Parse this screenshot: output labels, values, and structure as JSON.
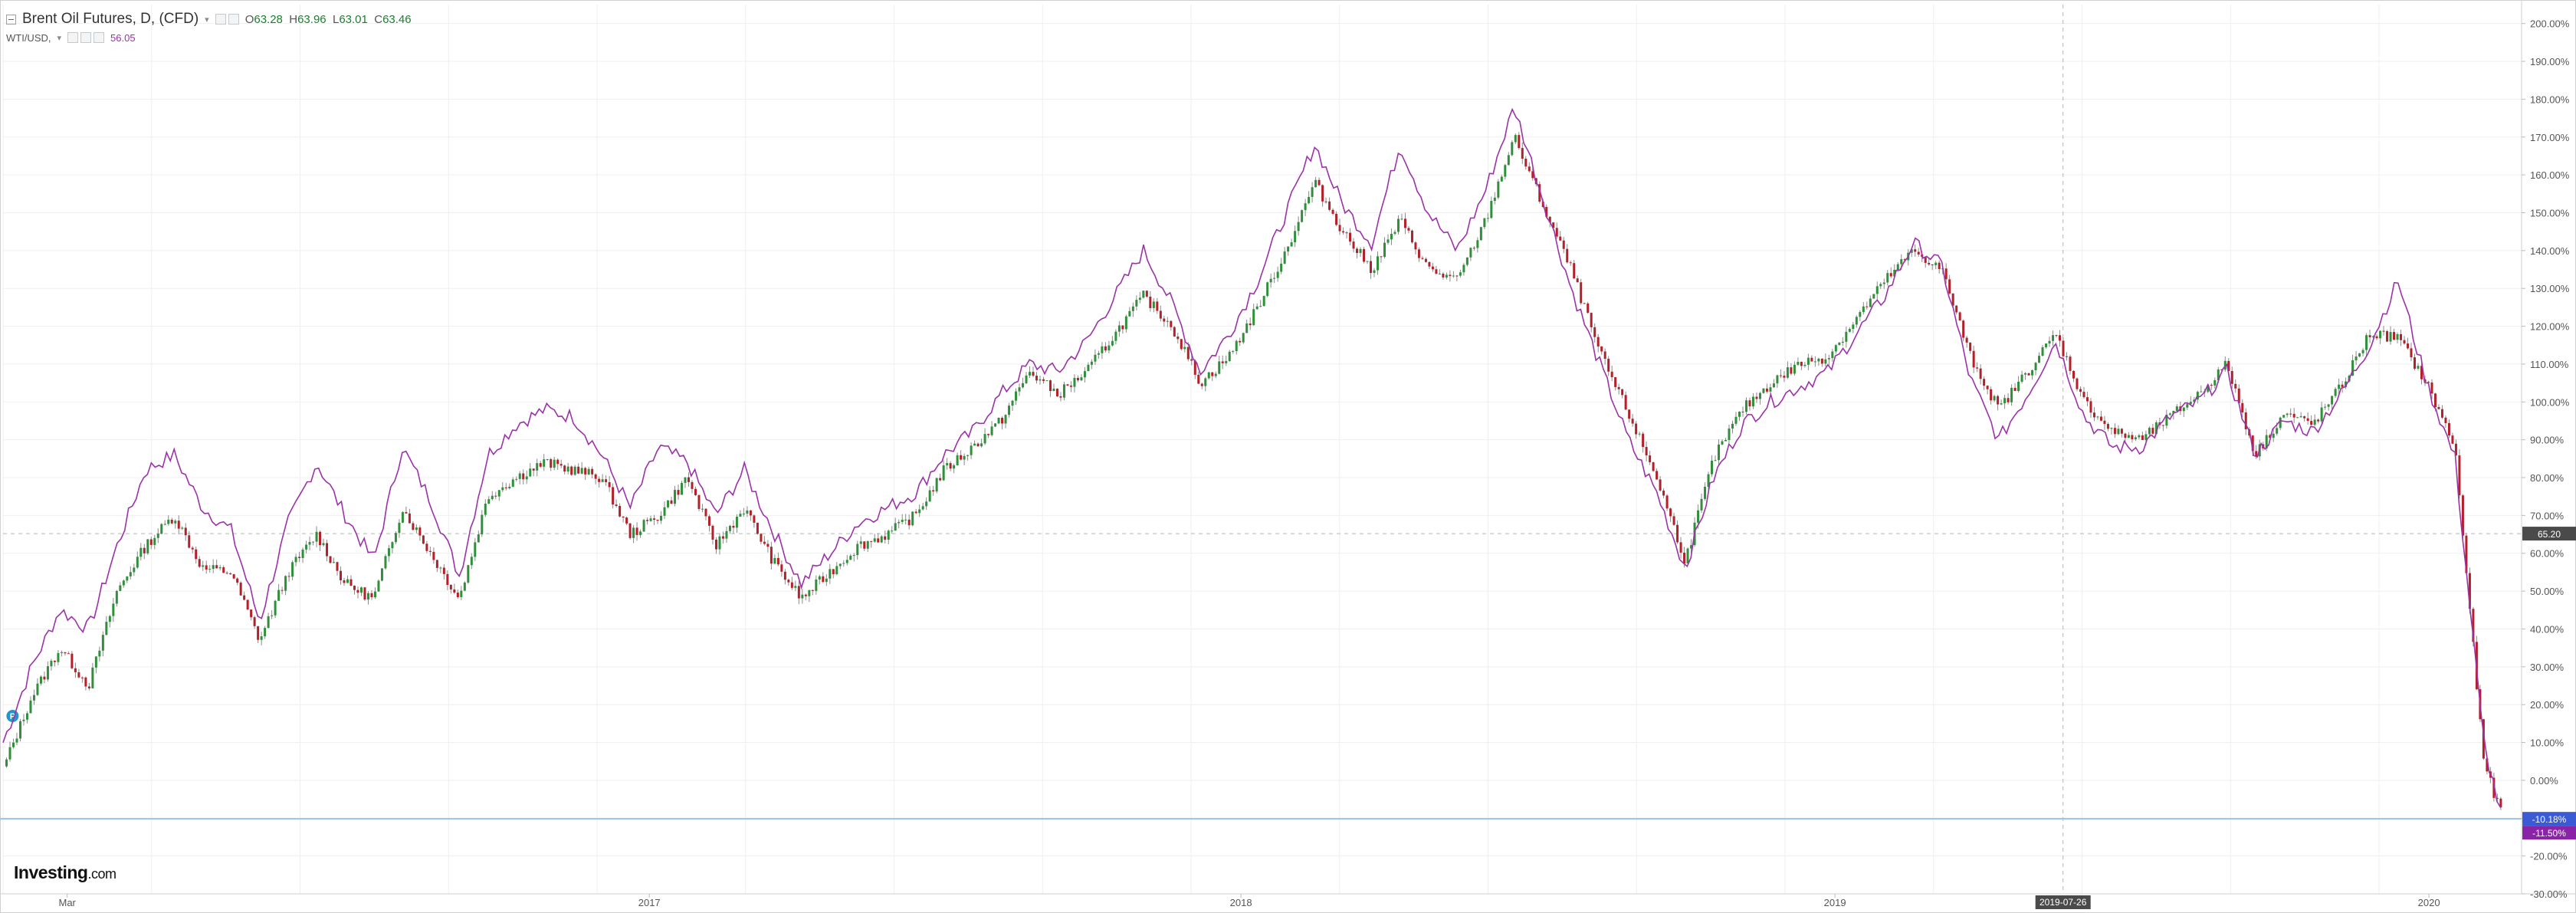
{
  "legend": {
    "main_title": "Brent Oil Futures, D, (CFD)",
    "open_label": "O",
    "open": "63.28",
    "high_label": "H",
    "high": "63.96",
    "low_label": "L",
    "low": "63.01",
    "close_label": "C",
    "close": "63.46",
    "compare_symbol": "WTI/USD,",
    "compare_value": "56.05"
  },
  "brand": {
    "name": "Investing",
    "suffix": ".com"
  },
  "colors": {
    "up": "#2f8f3a",
    "down": "#b3202a",
    "compare_line": "#9b32a8",
    "grid": "#efefef",
    "axis_text": "#555555",
    "current_line": "#9ec1e6",
    "brent_badge": "#3b5bd6",
    "wti_badge": "#8a24a6",
    "price_badge": "#4a4a4a"
  },
  "chart_data": {
    "type": "line",
    "title": "Brent Oil Futures, D, (CFD)",
    "ylabel": "",
    "y_unit": "percent change",
    "ylim": [
      -30,
      205
    ],
    "y_ticks": [
      -30,
      -20,
      -10,
      0,
      10,
      20,
      30,
      40,
      50,
      60,
      70,
      80,
      90,
      100,
      110,
      120,
      130,
      140,
      150,
      160,
      170,
      180,
      190,
      200
    ],
    "x_tick_labels": [
      "Mar",
      "2017",
      "2018",
      "2019",
      "2020"
    ],
    "x_tick_positions": [
      0.027,
      0.272,
      0.521,
      0.771,
      1.021
    ],
    "x_range": [
      0,
      1.06
    ],
    "crosshair_date": "2019-07-26",
    "crosshair_pos": 0.867,
    "crosshair_y_percent": 65.2,
    "current_badges": [
      {
        "label": "-10.18%",
        "value": -10.18,
        "series": "Brent Oil Futures"
      },
      {
        "label": "-11.50%",
        "value": -11.5,
        "series": "WTI/USD"
      },
      {
        "label": "65.20",
        "value": 65.2,
        "series": "crosshair"
      }
    ],
    "series": [
      {
        "name": "Brent Oil Futures",
        "style": "candlestick",
        "x": [
          0.0,
          0.012,
          0.024,
          0.036,
          0.048,
          0.06,
          0.072,
          0.084,
          0.096,
          0.108,
          0.12,
          0.132,
          0.144,
          0.156,
          0.168,
          0.18,
          0.192,
          0.204,
          0.216,
          0.228,
          0.24,
          0.252,
          0.264,
          0.276,
          0.288,
          0.3,
          0.312,
          0.324,
          0.336,
          0.348,
          0.36,
          0.372,
          0.384,
          0.396,
          0.408,
          0.42,
          0.432,
          0.444,
          0.456,
          0.468,
          0.48,
          0.492,
          0.504,
          0.516,
          0.528,
          0.54,
          0.552,
          0.564,
          0.576,
          0.588,
          0.6,
          0.612,
          0.624,
          0.636,
          0.648,
          0.66,
          0.672,
          0.684,
          0.696,
          0.708,
          0.72,
          0.732,
          0.744,
          0.756,
          0.768,
          0.78,
          0.792,
          0.804,
          0.816,
          0.828,
          0.84,
          0.852,
          0.864,
          0.876,
          0.888,
          0.9,
          0.912,
          0.924,
          0.936,
          0.948,
          0.96,
          0.972,
          0.984,
          0.996,
          1.008,
          1.02,
          1.032,
          1.044,
          1.052
        ],
        "values": [
          3,
          22,
          35,
          25,
          50,
          62,
          70,
          56,
          55,
          37,
          55,
          65,
          52,
          48,
          72,
          60,
          48,
          75,
          80,
          84,
          82,
          80,
          65,
          70,
          80,
          62,
          72,
          58,
          48,
          55,
          62,
          65,
          70,
          82,
          88,
          95,
          108,
          102,
          108,
          118,
          128,
          120,
          105,
          112,
          125,
          140,
          158,
          145,
          135,
          148,
          135,
          132,
          148,
          170,
          152,
          135,
          113,
          97,
          80,
          58,
          85,
          98,
          105,
          110,
          112,
          122,
          132,
          140,
          135,
          112,
          98,
          108,
          118,
          100,
          92,
          90,
          96,
          102,
          110,
          86,
          97,
          94,
          104,
          118,
          117,
          105,
          88,
          5,
          -10
        ]
      },
      {
        "name": "WTI/USD",
        "style": "line",
        "x": [
          0.0,
          0.012,
          0.024,
          0.036,
          0.048,
          0.06,
          0.072,
          0.084,
          0.096,
          0.108,
          0.12,
          0.132,
          0.144,
          0.156,
          0.168,
          0.18,
          0.192,
          0.204,
          0.216,
          0.228,
          0.24,
          0.252,
          0.264,
          0.276,
          0.288,
          0.3,
          0.312,
          0.324,
          0.336,
          0.348,
          0.36,
          0.372,
          0.384,
          0.396,
          0.408,
          0.42,
          0.432,
          0.444,
          0.456,
          0.468,
          0.48,
          0.492,
          0.504,
          0.516,
          0.528,
          0.54,
          0.552,
          0.564,
          0.576,
          0.588,
          0.6,
          0.612,
          0.624,
          0.636,
          0.648,
          0.66,
          0.672,
          0.684,
          0.696,
          0.708,
          0.72,
          0.732,
          0.744,
          0.756,
          0.768,
          0.78,
          0.792,
          0.804,
          0.816,
          0.828,
          0.84,
          0.852,
          0.864,
          0.876,
          0.888,
          0.9,
          0.912,
          0.924,
          0.936,
          0.948,
          0.96,
          0.972,
          0.984,
          0.996,
          1.008,
          1.02,
          1.032,
          1.044,
          1.052
        ],
        "values": [
          10,
          30,
          45,
          40,
          62,
          82,
          86,
          72,
          66,
          42,
          68,
          84,
          70,
          58,
          88,
          74,
          54,
          86,
          94,
          98,
          96,
          86,
          72,
          88,
          84,
          70,
          82,
          66,
          52,
          60,
          68,
          72,
          76,
          86,
          92,
          102,
          110,
          108,
          116,
          128,
          140,
          126,
          108,
          118,
          132,
          150,
          168,
          152,
          142,
          168,
          150,
          140,
          156,
          178,
          154,
          130,
          110,
          90,
          76,
          56,
          80,
          94,
          100,
          104,
          108,
          118,
          128,
          142,
          136,
          106,
          90,
          102,
          116,
          96,
          88,
          88,
          96,
          100,
          108,
          86,
          95,
          92,
          102,
          115,
          132,
          105,
          85,
          10,
          -11
        ]
      }
    ]
  }
}
